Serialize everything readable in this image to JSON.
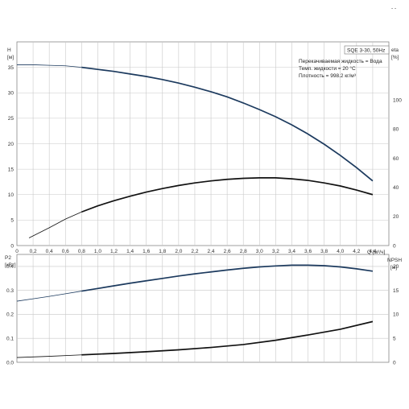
{
  "chart_data": [
    {
      "type": "line",
      "title": "",
      "ylabel_left": [
        "H",
        "[м]"
      ],
      "ylabel_right": [
        "eta",
        "[%]"
      ],
      "xlabel": "Q [м³/ч]",
      "xlim": [
        0,
        4.6
      ],
      "ylim_left": [
        0,
        40
      ],
      "ylim_right": [
        0,
        140
      ],
      "x_ticks": [
        "0",
        "0,2",
        "0,4",
        "0,6",
        "0,8",
        "1,0",
        "1,2",
        "1,4",
        "1,6",
        "1,8",
        "2,0",
        "2,2",
        "2,4",
        "2,6",
        "2,8",
        "3,0",
        "3,2",
        "3,4",
        "3,6",
        "3,8",
        "4,0",
        "4,2",
        "4,4"
      ],
      "x_tick_values": [
        0,
        0.2,
        0.4,
        0.6,
        0.8,
        1.0,
        1.2,
        1.4,
        1.6,
        1.8,
        2.0,
        2.2,
        2.4,
        2.6,
        2.8,
        3.0,
        3.2,
        3.4,
        3.6,
        3.8,
        4.0,
        4.2,
        4.4
      ],
      "y_ticks_left": [
        "0",
        "5",
        "10",
        "15",
        "20",
        "25",
        "30",
        "35"
      ],
      "y_tick_values_left": [
        0,
        5,
        10,
        15,
        20,
        25,
        30,
        35
      ],
      "y_ticks_right": [
        "0",
        "20",
        "40",
        "60",
        "80",
        "100"
      ],
      "y_tick_values_right": [
        0,
        20,
        40,
        60,
        80,
        100
      ],
      "grid": true,
      "annotation": {
        "model": "SQE 3-30, 50Hz",
        "lines": [
          "Перекачиваемая жидкость = Вода",
          "Темп. жидкости = 20 °C",
          "Плотность = 998.2 кг/м³"
        ]
      },
      "series": [
        {
          "axis": "left",
          "color": "#1c3a5e",
          "x": [
            0,
            0.2,
            0.4,
            0.6,
            0.8,
            1.0,
            1.2,
            1.4,
            1.6,
            1.8,
            2.0,
            2.2,
            2.4,
            2.6,
            2.8,
            3.0,
            3.2,
            3.4,
            3.6,
            3.8,
            4.0,
            4.2,
            4.4
          ],
          "y": [
            35.5,
            35.5,
            35.4,
            35.3,
            35.0,
            34.6,
            34.2,
            33.7,
            33.2,
            32.6,
            31.9,
            31.1,
            30.2,
            29.2,
            28.0,
            26.7,
            25.3,
            23.7,
            21.9,
            19.9,
            17.7,
            15.3,
            12.7
          ]
        },
        {
          "axis": "left",
          "color": "#111111",
          "x": [
            0.15,
            0.4,
            0.6,
            0.8,
            1.0,
            1.2,
            1.4,
            1.6,
            1.8,
            2.0,
            2.2,
            2.4,
            2.6,
            2.8,
            3.0,
            3.2,
            3.4,
            3.6,
            3.8,
            4.0,
            4.2,
            4.4
          ],
          "y": [
            1.5,
            3.5,
            5.2,
            6.6,
            7.8,
            8.8,
            9.7,
            10.5,
            11.2,
            11.8,
            12.3,
            12.7,
            13.0,
            13.2,
            13.3,
            13.3,
            13.1,
            12.8,
            12.3,
            11.7,
            10.9,
            10.0
          ]
        }
      ]
    },
    {
      "type": "line",
      "title": "",
      "ylabel_left": [
        "P2",
        "[кВт]"
      ],
      "ylabel_right": [
        "NPSH",
        "[м]"
      ],
      "xlim": [
        0,
        4.6
      ],
      "ylim_left": [
        0,
        0.45
      ],
      "ylim_right": [
        0,
        22.5
      ],
      "y_ticks_left": [
        "0.0",
        "0.1",
        "0.2",
        "0.3",
        "0.4"
      ],
      "y_tick_values_left": [
        0,
        0.1,
        0.2,
        0.3,
        0.4
      ],
      "y_ticks_right": [
        "0",
        "5",
        "10",
        "15",
        "20"
      ],
      "y_tick_values_right": [
        0,
        5,
        10,
        15,
        20
      ],
      "grid": true,
      "series": [
        {
          "axis": "left",
          "color": "#1c3a5e",
          "x": [
            0,
            0.2,
            0.4,
            0.6,
            0.8,
            1.0,
            1.2,
            1.4,
            1.6,
            1.8,
            2.0,
            2.2,
            2.4,
            2.6,
            2.8,
            3.0,
            3.2,
            3.4,
            3.6,
            3.8,
            4.0,
            4.2,
            4.4
          ],
          "y": [
            0.255,
            0.265,
            0.275,
            0.286,
            0.297,
            0.308,
            0.319,
            0.33,
            0.34,
            0.35,
            0.36,
            0.369,
            0.377,
            0.385,
            0.392,
            0.398,
            0.402,
            0.405,
            0.405,
            0.403,
            0.398,
            0.39,
            0.38
          ]
        },
        {
          "axis": "right",
          "color": "#111111",
          "x": [
            0,
            0.4,
            0.8,
            1.2,
            1.6,
            2.0,
            2.4,
            2.8,
            3.2,
            3.6,
            4.0,
            4.4
          ],
          "y": [
            1.0,
            1.25,
            1.55,
            1.85,
            2.2,
            2.6,
            3.1,
            3.7,
            4.6,
            5.7,
            6.9,
            8.5
          ]
        }
      ]
    }
  ]
}
